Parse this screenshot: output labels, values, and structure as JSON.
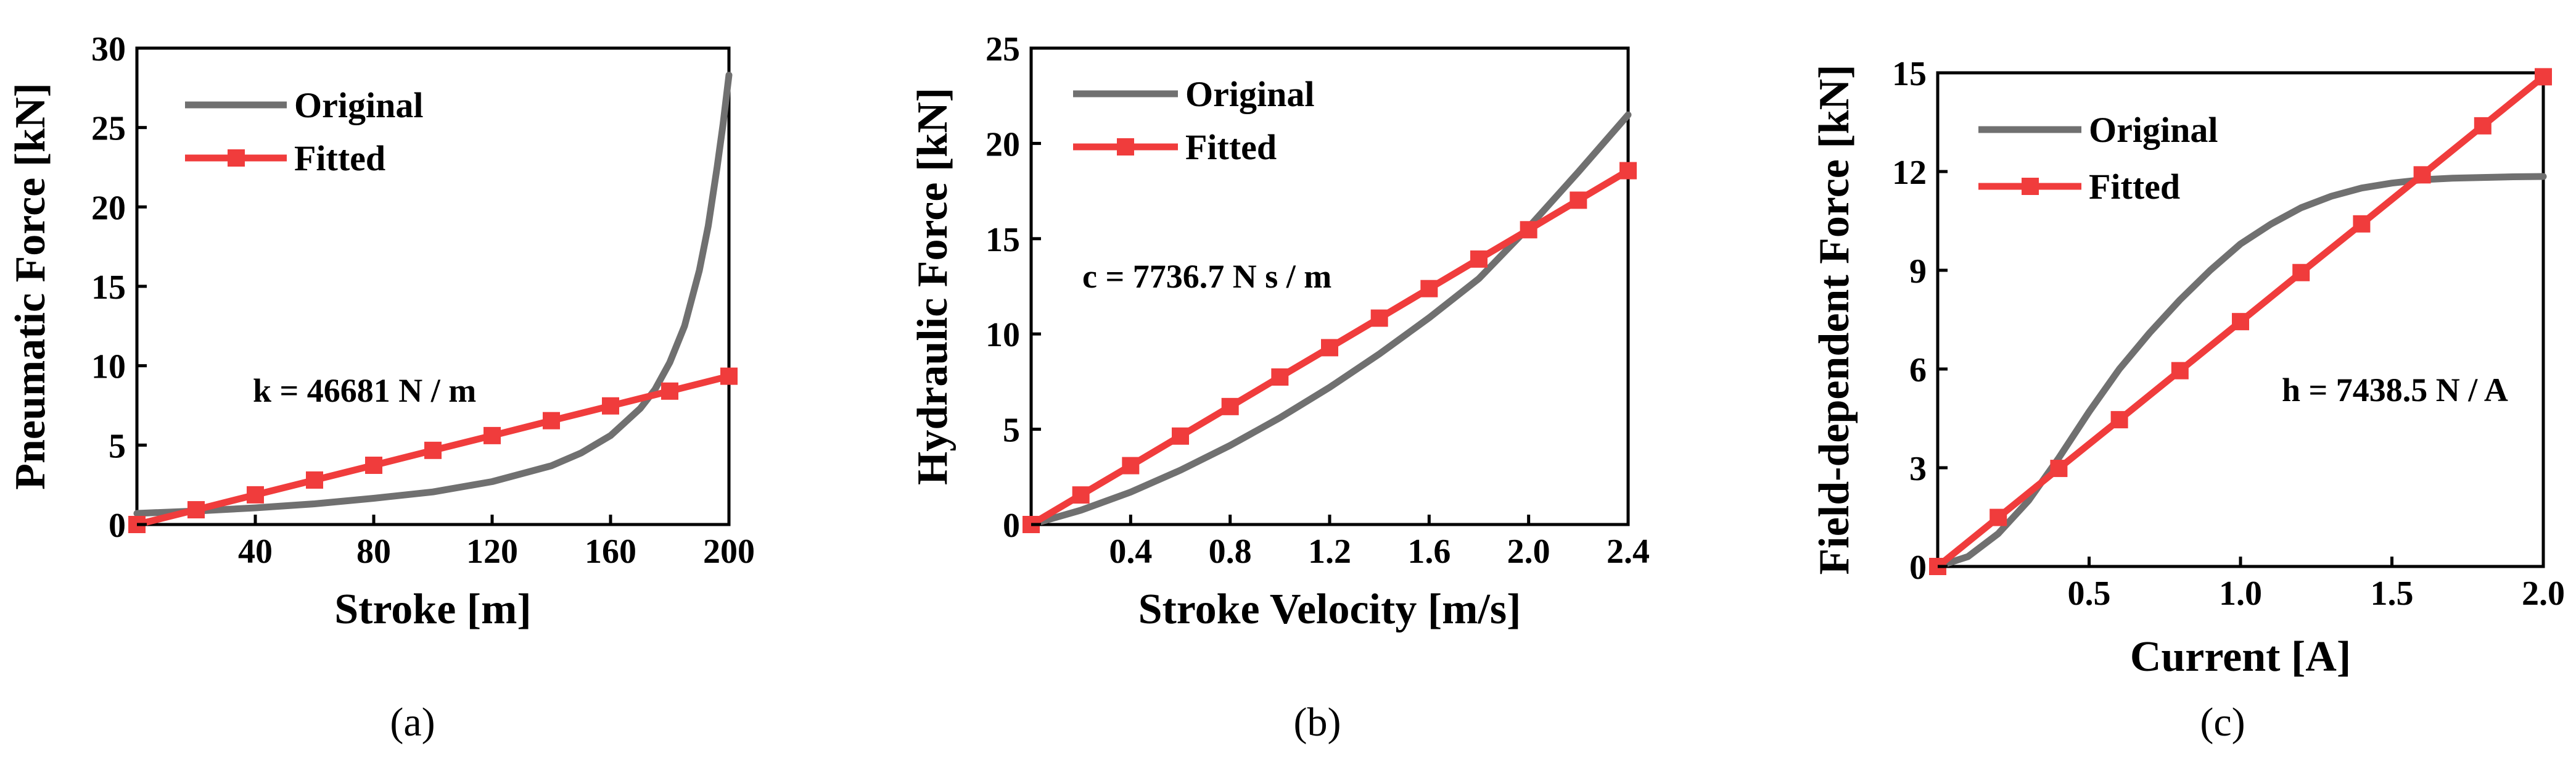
{
  "colors": {
    "original": "#707070",
    "fitted": "#f03c3c",
    "axis": "#000000",
    "background": "#ffffff"
  },
  "chart_data": [
    {
      "id": "a",
      "type": "line",
      "caption": "(a)",
      "xlabel": "Stroke [m]",
      "ylabel": "Pneumatic Force [kN]",
      "xlim": [
        0,
        200
      ],
      "ylim": [
        0,
        30
      ],
      "xticks": [
        40,
        80,
        120,
        160,
        200
      ],
      "yticks": [
        0,
        5,
        10,
        15,
        20,
        25,
        30
      ],
      "legend": {
        "position": "top-left",
        "entries": [
          "Original",
          "Fitted"
        ]
      },
      "annotation": "k = 46681 N / m",
      "series": [
        {
          "name": "Original",
          "style": "curve",
          "x": [
            0,
            20,
            40,
            60,
            80,
            100,
            120,
            140,
            150,
            160,
            170,
            175,
            180,
            185,
            190,
            193,
            196,
            198,
            200
          ],
          "y": [
            0.7,
            0.85,
            1.05,
            1.3,
            1.65,
            2.05,
            2.7,
            3.7,
            4.5,
            5.6,
            7.3,
            8.5,
            10.2,
            12.5,
            16.0,
            18.8,
            22.5,
            25.2,
            28.3
          ]
        },
        {
          "name": "Fitted",
          "style": "markers",
          "x": [
            0,
            20,
            40,
            60,
            80,
            100,
            120,
            140,
            160,
            180,
            200
          ],
          "y": [
            0,
            0.93,
            1.87,
            2.8,
            3.73,
            4.67,
            5.6,
            6.54,
            7.47,
            8.4,
            9.34
          ]
        }
      ]
    },
    {
      "id": "b",
      "type": "line",
      "caption": "(b)",
      "xlabel": "Stroke Velocity [m/s]",
      "ylabel": "Hydraulic Force [kN]",
      "xlim": [
        0,
        2.4
      ],
      "ylim": [
        0,
        25
      ],
      "xticks": [
        0.4,
        0.8,
        1.2,
        1.6,
        2.0,
        2.4
      ],
      "yticks": [
        0,
        5,
        10,
        15,
        20,
        25
      ],
      "legend": {
        "position": "top-left",
        "entries": [
          "Original",
          "Fitted"
        ]
      },
      "annotation": "c = 7736.7 N s / m",
      "series": [
        {
          "name": "Original",
          "style": "curve",
          "x": [
            0,
            0.2,
            0.4,
            0.6,
            0.8,
            1.0,
            1.2,
            1.4,
            1.6,
            1.8,
            2.0,
            2.2,
            2.4
          ],
          "y": [
            0,
            0.75,
            1.7,
            2.85,
            4.15,
            5.6,
            7.2,
            8.95,
            10.85,
            12.9,
            15.6,
            18.5,
            21.5
          ]
        },
        {
          "name": "Fitted",
          "style": "markers",
          "x": [
            0,
            0.2,
            0.4,
            0.6,
            0.8,
            1.0,
            1.2,
            1.4,
            1.6,
            1.8,
            2.0,
            2.2,
            2.4
          ],
          "y": [
            0,
            1.55,
            3.09,
            4.64,
            6.19,
            7.74,
            9.28,
            10.83,
            12.38,
            13.93,
            15.47,
            17.02,
            18.57
          ]
        }
      ]
    },
    {
      "id": "c",
      "type": "line",
      "caption": "(c)",
      "xlabel": "Current [A]",
      "ylabel": "Field-dependent Force [kN]",
      "xlim": [
        0,
        2.0
      ],
      "ylim": [
        0,
        15
      ],
      "xticks": [
        0.5,
        1.0,
        1.5,
        2.0
      ],
      "yticks": [
        0,
        3,
        6,
        9,
        12,
        15
      ],
      "legend": {
        "position": "top-left",
        "entries": [
          "Original",
          "Fitted"
        ]
      },
      "annotation": "h = 7438.5 N / A",
      "series": [
        {
          "name": "Original",
          "style": "curve",
          "x": [
            0,
            0.1,
            0.2,
            0.3,
            0.4,
            0.5,
            0.6,
            0.7,
            0.8,
            0.9,
            1.0,
            1.1,
            1.2,
            1.3,
            1.4,
            1.5,
            1.6,
            1.7,
            1.8,
            1.9,
            2.0
          ],
          "y": [
            0,
            0.3,
            1.0,
            2.0,
            3.3,
            4.7,
            6.0,
            7.1,
            8.1,
            9.0,
            9.8,
            10.4,
            10.9,
            11.25,
            11.5,
            11.65,
            11.75,
            11.8,
            11.82,
            11.84,
            11.85
          ]
        },
        {
          "name": "Fitted",
          "style": "markers",
          "x": [
            0,
            0.2,
            0.4,
            0.6,
            0.8,
            1.0,
            1.2,
            1.4,
            1.6,
            1.8,
            2.0
          ],
          "y": [
            0,
            1.49,
            2.98,
            4.46,
            5.95,
            7.44,
            8.93,
            10.41,
            11.9,
            13.39,
            14.88
          ]
        }
      ]
    }
  ]
}
